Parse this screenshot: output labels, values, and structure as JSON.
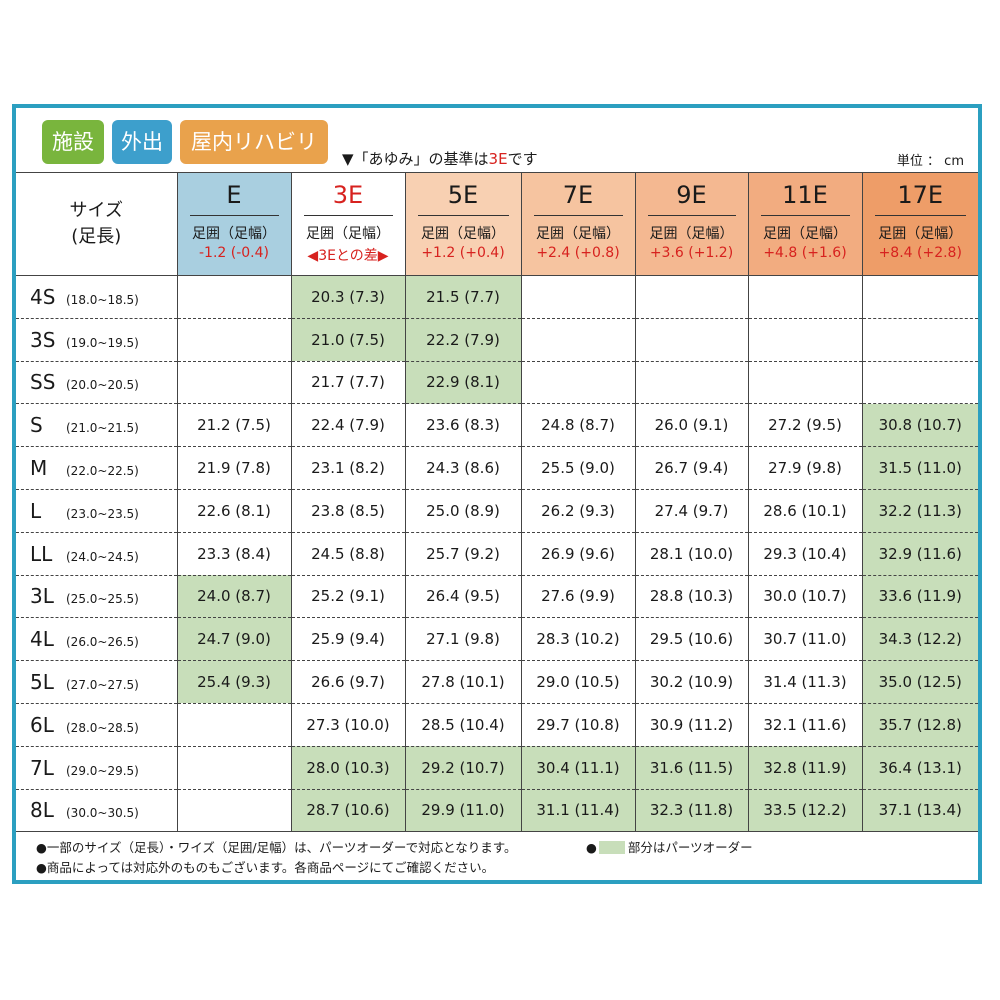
{
  "badges": [
    "施設",
    "外出",
    "屋内リハビリ"
  ],
  "colors": {
    "border": "#2b9fc0",
    "badge_facility": "#79b53d",
    "badge_outing": "#3d9fcc",
    "badge_rehab": "#e9a24c",
    "parts_order": "#c8deba",
    "accent_red": "#d7221f"
  },
  "note": {
    "prefix": "▼「あゆみ」の基準は",
    "highlight": "3E",
    "suffix": "です"
  },
  "unit": "単位 ： cm",
  "size_header": [
    "サイズ",
    "(足長)"
  ],
  "widths": [
    {
      "name": "E",
      "sub": "足囲（足幅）",
      "diff": "-1.2 (-0.4)",
      "bg": "#a9cfe0"
    },
    {
      "name": "3E",
      "sub": "足囲（足幅）",
      "diff": "◀3Eとの差▶",
      "bg": "#ffffff",
      "red": true
    },
    {
      "name": "5E",
      "sub": "足囲（足幅）",
      "diff": "+1.2 (+0.4)",
      "bg": "#f8d0b2"
    },
    {
      "name": "7E",
      "sub": "足囲（足幅）",
      "diff": "+2.4 (+0.8)",
      "bg": "#f6c4a0"
    },
    {
      "name": "9E",
      "sub": "足囲（足幅）",
      "diff": "+3.6 (+1.2)",
      "bg": "#f4b891"
    },
    {
      "name": "11E",
      "sub": "足囲（足幅）",
      "diff": "+4.8 (+1.6)",
      "bg": "#f2ac80"
    },
    {
      "name": "17E",
      "sub": "足囲（足幅）",
      "diff": "+8.4 (+2.8)",
      "bg": "#ee9d68"
    }
  ],
  "rows": [
    {
      "size": "4S",
      "range": "(18.0~18.5)",
      "cells": [
        [
          "",
          false
        ],
        [
          "20.3 (7.3)",
          true
        ],
        [
          "21.5 (7.7)",
          true
        ],
        [
          "",
          false
        ],
        [
          "",
          false
        ],
        [
          "",
          false
        ],
        [
          "",
          false
        ]
      ]
    },
    {
      "size": "3S",
      "range": "(19.0~19.5)",
      "cells": [
        [
          "",
          false
        ],
        [
          "21.0 (7.5)",
          true
        ],
        [
          "22.2 (7.9)",
          true
        ],
        [
          "",
          false
        ],
        [
          "",
          false
        ],
        [
          "",
          false
        ],
        [
          "",
          false
        ]
      ]
    },
    {
      "size": "SS",
      "range": "(20.0~20.5)",
      "cells": [
        [
          "",
          false
        ],
        [
          "21.7 (7.7)",
          false
        ],
        [
          "22.9 (8.1)",
          true
        ],
        [
          "",
          false
        ],
        [
          "",
          false
        ],
        [
          "",
          false
        ],
        [
          "",
          false
        ]
      ]
    },
    {
      "size": "S",
      "range": "(21.0~21.5)",
      "cells": [
        [
          "21.2 (7.5)",
          false
        ],
        [
          "22.4 (7.9)",
          false
        ],
        [
          "23.6 (8.3)",
          false
        ],
        [
          "24.8 (8.7)",
          false
        ],
        [
          "26.0 (9.1)",
          false
        ],
        [
          "27.2 (9.5)",
          false
        ],
        [
          "30.8 (10.7)",
          true
        ]
      ]
    },
    {
      "size": "M",
      "range": "(22.0~22.5)",
      "cells": [
        [
          "21.9 (7.8)",
          false
        ],
        [
          "23.1 (8.2)",
          false
        ],
        [
          "24.3 (8.6)",
          false
        ],
        [
          "25.5 (9.0)",
          false
        ],
        [
          "26.7 (9.4)",
          false
        ],
        [
          "27.9 (9.8)",
          false
        ],
        [
          "31.5 (11.0)",
          true
        ]
      ]
    },
    {
      "size": "L",
      "range": "(23.0~23.5)",
      "cells": [
        [
          "22.6 (8.1)",
          false
        ],
        [
          "23.8 (8.5)",
          false
        ],
        [
          "25.0 (8.9)",
          false
        ],
        [
          "26.2 (9.3)",
          false
        ],
        [
          "27.4 (9.7)",
          false
        ],
        [
          "28.6 (10.1)",
          false
        ],
        [
          "32.2 (11.3)",
          true
        ]
      ]
    },
    {
      "size": "LL",
      "range": "(24.0~24.5)",
      "cells": [
        [
          "23.3 (8.4)",
          false
        ],
        [
          "24.5 (8.8)",
          false
        ],
        [
          "25.7 (9.2)",
          false
        ],
        [
          "26.9 (9.6)",
          false
        ],
        [
          "28.1 (10.0)",
          false
        ],
        [
          "29.3 (10.4)",
          false
        ],
        [
          "32.9 (11.6)",
          true
        ]
      ]
    },
    {
      "size": "3L",
      "range": "(25.0~25.5)",
      "cells": [
        [
          "24.0 (8.7)",
          true
        ],
        [
          "25.2 (9.1)",
          false
        ],
        [
          "26.4 (9.5)",
          false
        ],
        [
          "27.6 (9.9)",
          false
        ],
        [
          "28.8 (10.3)",
          false
        ],
        [
          "30.0 (10.7)",
          false
        ],
        [
          "33.6 (11.9)",
          true
        ]
      ]
    },
    {
      "size": "4L",
      "range": "(26.0~26.5)",
      "cells": [
        [
          "24.7 (9.0)",
          true
        ],
        [
          "25.9 (9.4)",
          false
        ],
        [
          "27.1 (9.8)",
          false
        ],
        [
          "28.3 (10.2)",
          false
        ],
        [
          "29.5 (10.6)",
          false
        ],
        [
          "30.7 (11.0)",
          false
        ],
        [
          "34.3 (12.2)",
          true
        ]
      ]
    },
    {
      "size": "5L",
      "range": "(27.0~27.5)",
      "cells": [
        [
          "25.4 (9.3)",
          true
        ],
        [
          "26.6 (9.7)",
          false
        ],
        [
          "27.8 (10.1)",
          false
        ],
        [
          "29.0 (10.5)",
          false
        ],
        [
          "30.2 (10.9)",
          false
        ],
        [
          "31.4 (11.3)",
          false
        ],
        [
          "35.0 (12.5)",
          true
        ]
      ]
    },
    {
      "size": "6L",
      "range": "(28.0~28.5)",
      "cells": [
        [
          "",
          false
        ],
        [
          "27.3 (10.0)",
          false
        ],
        [
          "28.5 (10.4)",
          false
        ],
        [
          "29.7 (10.8)",
          false
        ],
        [
          "30.9 (11.2)",
          false
        ],
        [
          "32.1 (11.6)",
          false
        ],
        [
          "35.7 (12.8)",
          true
        ]
      ]
    },
    {
      "size": "7L",
      "range": "(29.0~29.5)",
      "cells": [
        [
          "",
          false
        ],
        [
          "28.0 (10.3)",
          true
        ],
        [
          "29.2 (10.7)",
          true
        ],
        [
          "30.4 (11.1)",
          true
        ],
        [
          "31.6 (11.5)",
          true
        ],
        [
          "32.8 (11.9)",
          true
        ],
        [
          "36.4 (13.1)",
          true
        ]
      ]
    },
    {
      "size": "8L",
      "range": "(30.0~30.5)",
      "cells": [
        [
          "",
          false
        ],
        [
          "28.7 (10.6)",
          true
        ],
        [
          "29.9 (11.0)",
          true
        ],
        [
          "31.1 (11.4)",
          true
        ],
        [
          "32.3 (11.8)",
          true
        ],
        [
          "33.5 (12.2)",
          true
        ],
        [
          "37.1 (13.4)",
          true
        ]
      ]
    }
  ],
  "footer": {
    "line1": "●一部のサイズ（足長）・ワイズ（足囲/足幅）は、パーツオーダーで対応となります。",
    "line2": "●商品によっては対応外のものもございます。各商品ページにてご確認ください。",
    "legend_bullet": "●",
    "legend_text": "部分はパーツオーダー"
  }
}
